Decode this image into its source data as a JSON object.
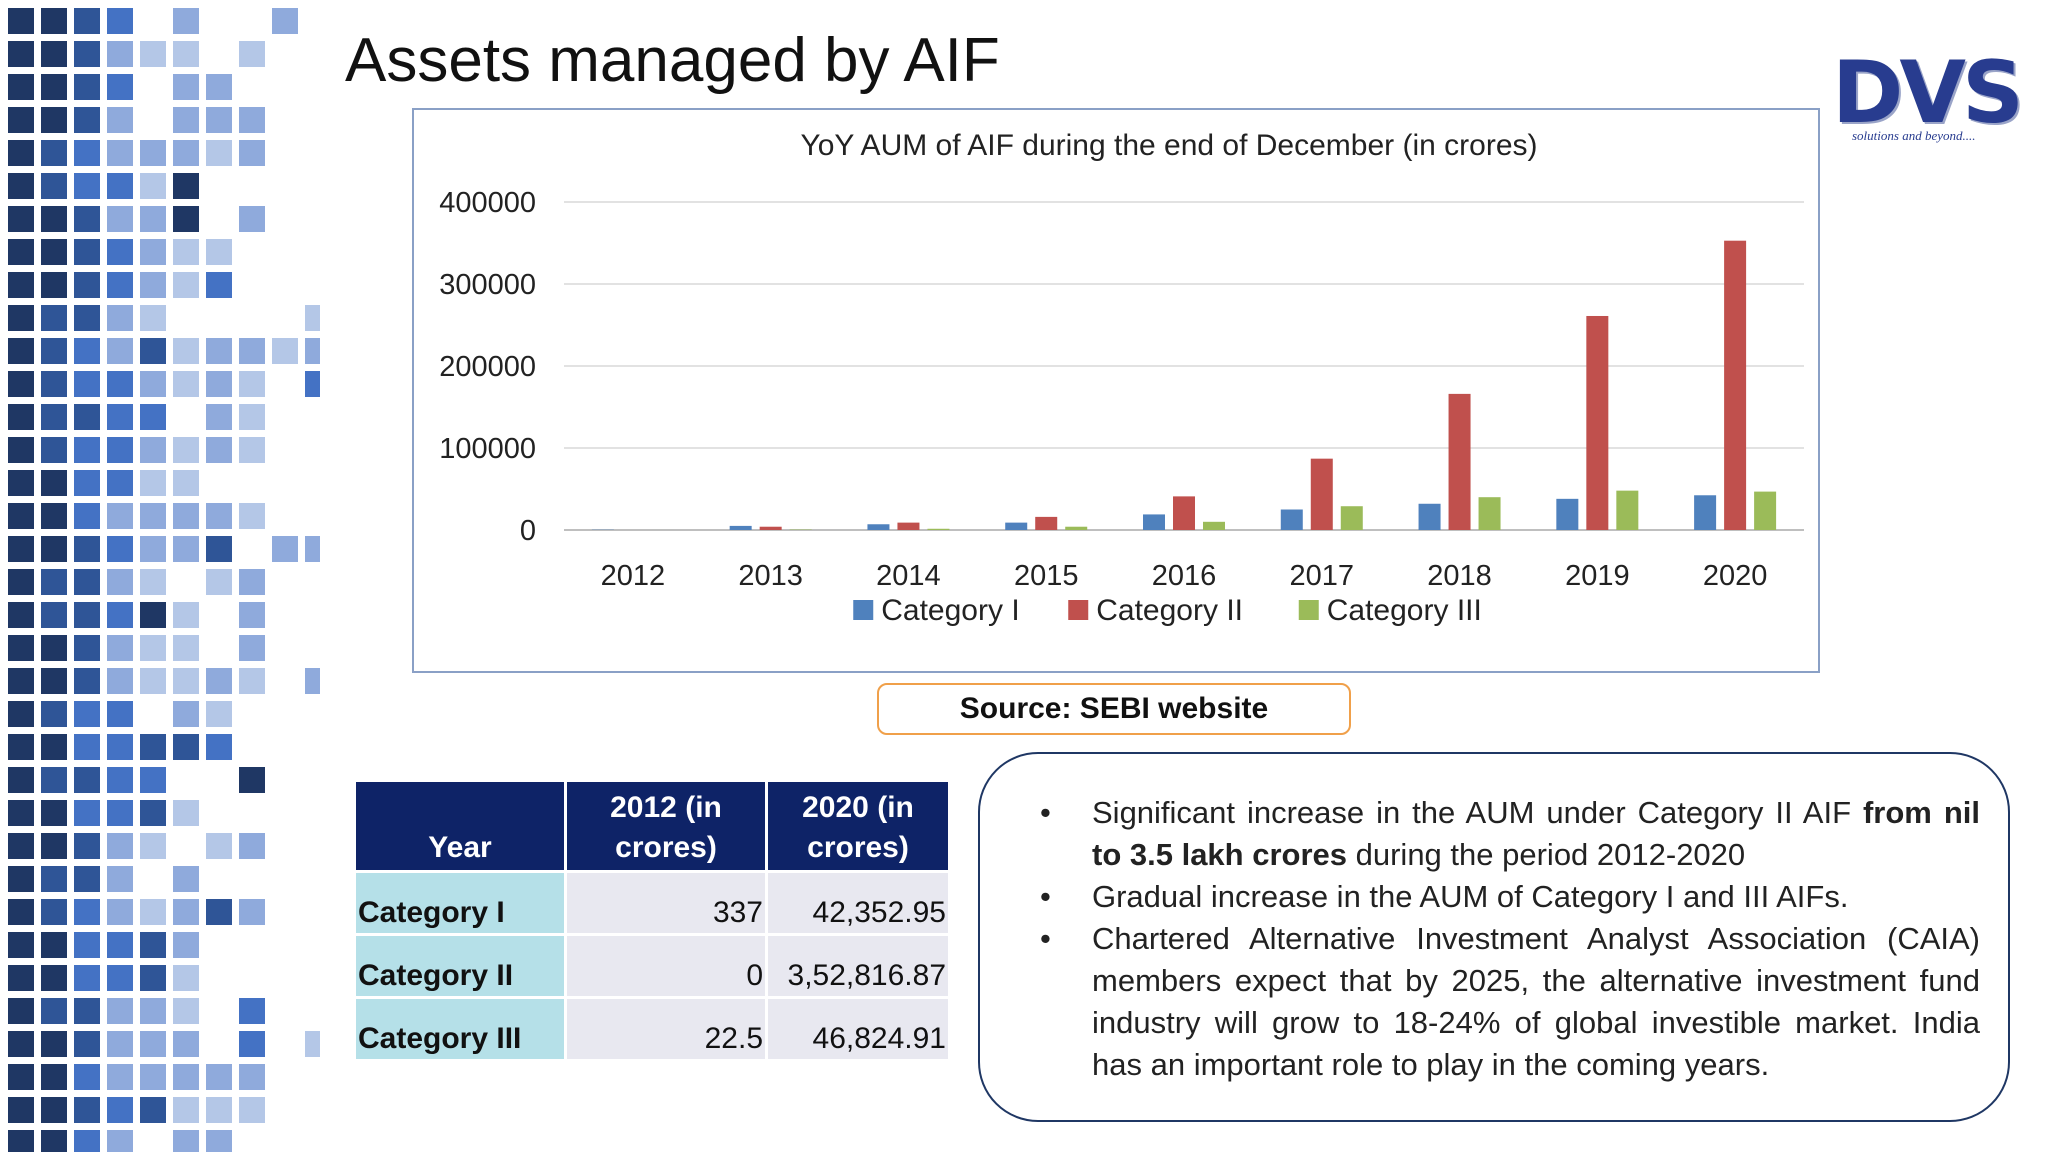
{
  "slide": {
    "title": "Assets managed by AIF",
    "logo": {
      "text": "DVS",
      "tagline": "solutions and beyond...."
    },
    "source_label": "Source: SEBI website"
  },
  "colors": {
    "category_i": "#4f81bd",
    "category_ii": "#c0504d",
    "category_iii": "#9bbb59",
    "table_header_bg": "#0e2367",
    "table_row_head_bg": "#b5e0e8",
    "table_cell_bg": "#e8e8f0",
    "mosaic": [
      "#1f3764",
      "#2f5597",
      "#4472c4",
      "#8faadc",
      "#b4c7e7"
    ]
  },
  "chart_data": {
    "type": "bar",
    "title": "YoY AUM of AIF during the end of December (in crores)",
    "categories": [
      "2012",
      "2013",
      "2014",
      "2015",
      "2016",
      "2017",
      "2018",
      "2019",
      "2020"
    ],
    "series": [
      {
        "name": "Category I",
        "values": [
          337,
          5000,
          7000,
          9000,
          19000,
          25000,
          32000,
          38000,
          42353
        ]
      },
      {
        "name": "Category II",
        "values": [
          0,
          4000,
          9000,
          16000,
          41000,
          87000,
          166000,
          261000,
          352817
        ]
      },
      {
        "name": "Category III",
        "values": [
          22.5,
          500,
          1500,
          4000,
          10000,
          29000,
          40000,
          48000,
          46825
        ]
      }
    ],
    "ylim": [
      0,
      400000
    ],
    "yticks": [
      "0",
      "100000",
      "200000",
      "300000",
      "400000"
    ],
    "grid": true,
    "legend": "bottom",
    "xlabel": "",
    "ylabel": ""
  },
  "table": {
    "headers": [
      "Year",
      "2012 (in crores)",
      "2020 (in crores)"
    ],
    "rows": [
      {
        "label": "Category I",
        "v2012": "337",
        "v2020": "42,352.95"
      },
      {
        "label": "Category II",
        "v2012": "0",
        "v2020": "3,52,816.87"
      },
      {
        "label": "Category III",
        "v2012": "22.5",
        "v2020": "46,824.91"
      }
    ]
  },
  "notes": {
    "bullet": "•",
    "items": [
      {
        "parts": [
          {
            "text": "Significant increase in the AUM under Category II AIF ",
            "bold": false
          },
          {
            "text": "from nil to 3.5 lakh crores",
            "bold": true
          },
          {
            "text": " during the period 2012-2020",
            "bold": false
          }
        ]
      },
      {
        "parts": [
          {
            "text": "Gradual increase in the AUM of Category I and III AIFs.",
            "bold": false
          }
        ]
      },
      {
        "parts": [
          {
            "text": "Chartered Alternative Investment Analyst Association (CAIA) members expect that by 2025, the alternative investment fund industry will grow to 18-24% of global investible market. India has an important role to play in the coming years.",
            "bold": false
          }
        ]
      }
    ]
  }
}
